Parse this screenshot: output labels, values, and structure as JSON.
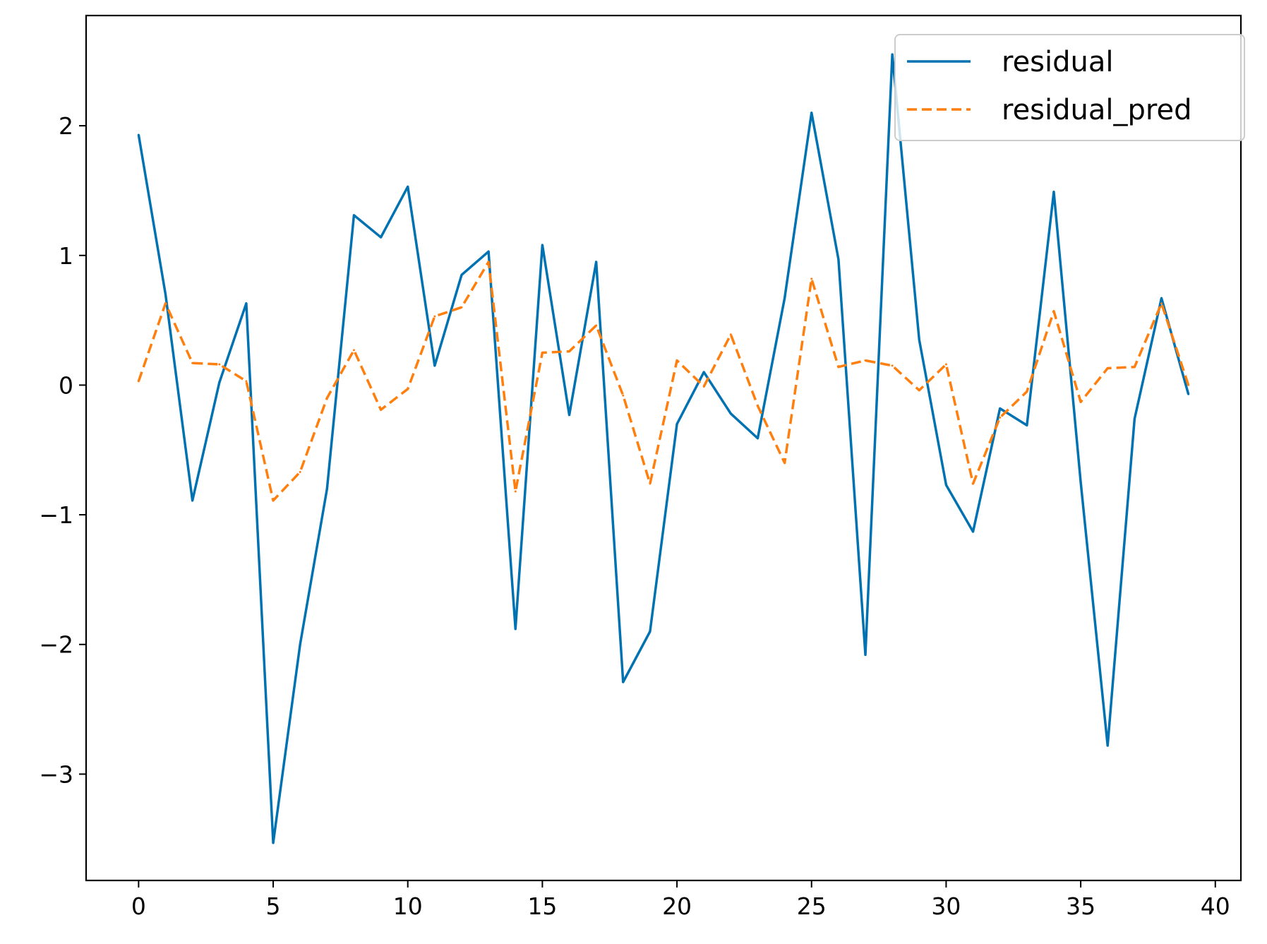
{
  "chart_data": {
    "type": "line",
    "title": "",
    "xlabel": "",
    "ylabel": "",
    "xlim": [
      -1.95,
      40.95
    ],
    "ylim": [
      -3.82,
      2.85
    ],
    "xticks": [
      0,
      5,
      10,
      15,
      20,
      25,
      30,
      35,
      40
    ],
    "xtick_labels": [
      "0",
      "5",
      "10",
      "15",
      "20",
      "25",
      "30",
      "35",
      "40"
    ],
    "yticks": [
      -3,
      -2,
      -1,
      0,
      1,
      2
    ],
    "ytick_labels": [
      "−3",
      "−2",
      "−1",
      "0",
      "1",
      "2"
    ],
    "grid": false,
    "legend_position": "top-right",
    "x": [
      0,
      1,
      2,
      3,
      4,
      5,
      6,
      7,
      8,
      9,
      10,
      11,
      12,
      13,
      14,
      15,
      16,
      17,
      18,
      19,
      20,
      21,
      22,
      23,
      24,
      25,
      26,
      27,
      28,
      29,
      30,
      31,
      32,
      33,
      34,
      35,
      36,
      37,
      38,
      39
    ],
    "series": [
      {
        "name": "residual",
        "color": "#0072b2",
        "style": "solid",
        "values": [
          1.93,
          0.7,
          -0.89,
          0.02,
          0.63,
          -3.53,
          -2.0,
          -0.8,
          1.31,
          1.14,
          1.53,
          0.15,
          0.85,
          1.03,
          -1.88,
          1.08,
          -0.23,
          0.95,
          -2.29,
          -1.9,
          -0.3,
          0.1,
          -0.22,
          -0.41,
          0.67,
          2.1,
          0.97,
          -2.08,
          2.55,
          0.35,
          -0.77,
          -1.13,
          -0.18,
          -0.31,
          1.49,
          -0.75,
          -2.78,
          -0.26,
          0.67,
          -0.07
        ]
      },
      {
        "name": "residual_pred",
        "color": "#ff7f0e",
        "style": "dashed",
        "values": [
          0.03,
          0.63,
          0.17,
          0.16,
          0.03,
          -0.89,
          -0.67,
          -0.1,
          0.27,
          -0.19,
          -0.03,
          0.53,
          0.6,
          0.95,
          -0.82,
          0.25,
          0.26,
          0.46,
          -0.08,
          -0.76,
          0.19,
          -0.01,
          0.39,
          -0.16,
          -0.6,
          0.82,
          0.14,
          0.19,
          0.15,
          -0.04,
          0.16,
          -0.76,
          -0.25,
          -0.05,
          0.57,
          -0.13,
          0.13,
          0.14,
          0.63,
          0.0
        ]
      }
    ]
  }
}
